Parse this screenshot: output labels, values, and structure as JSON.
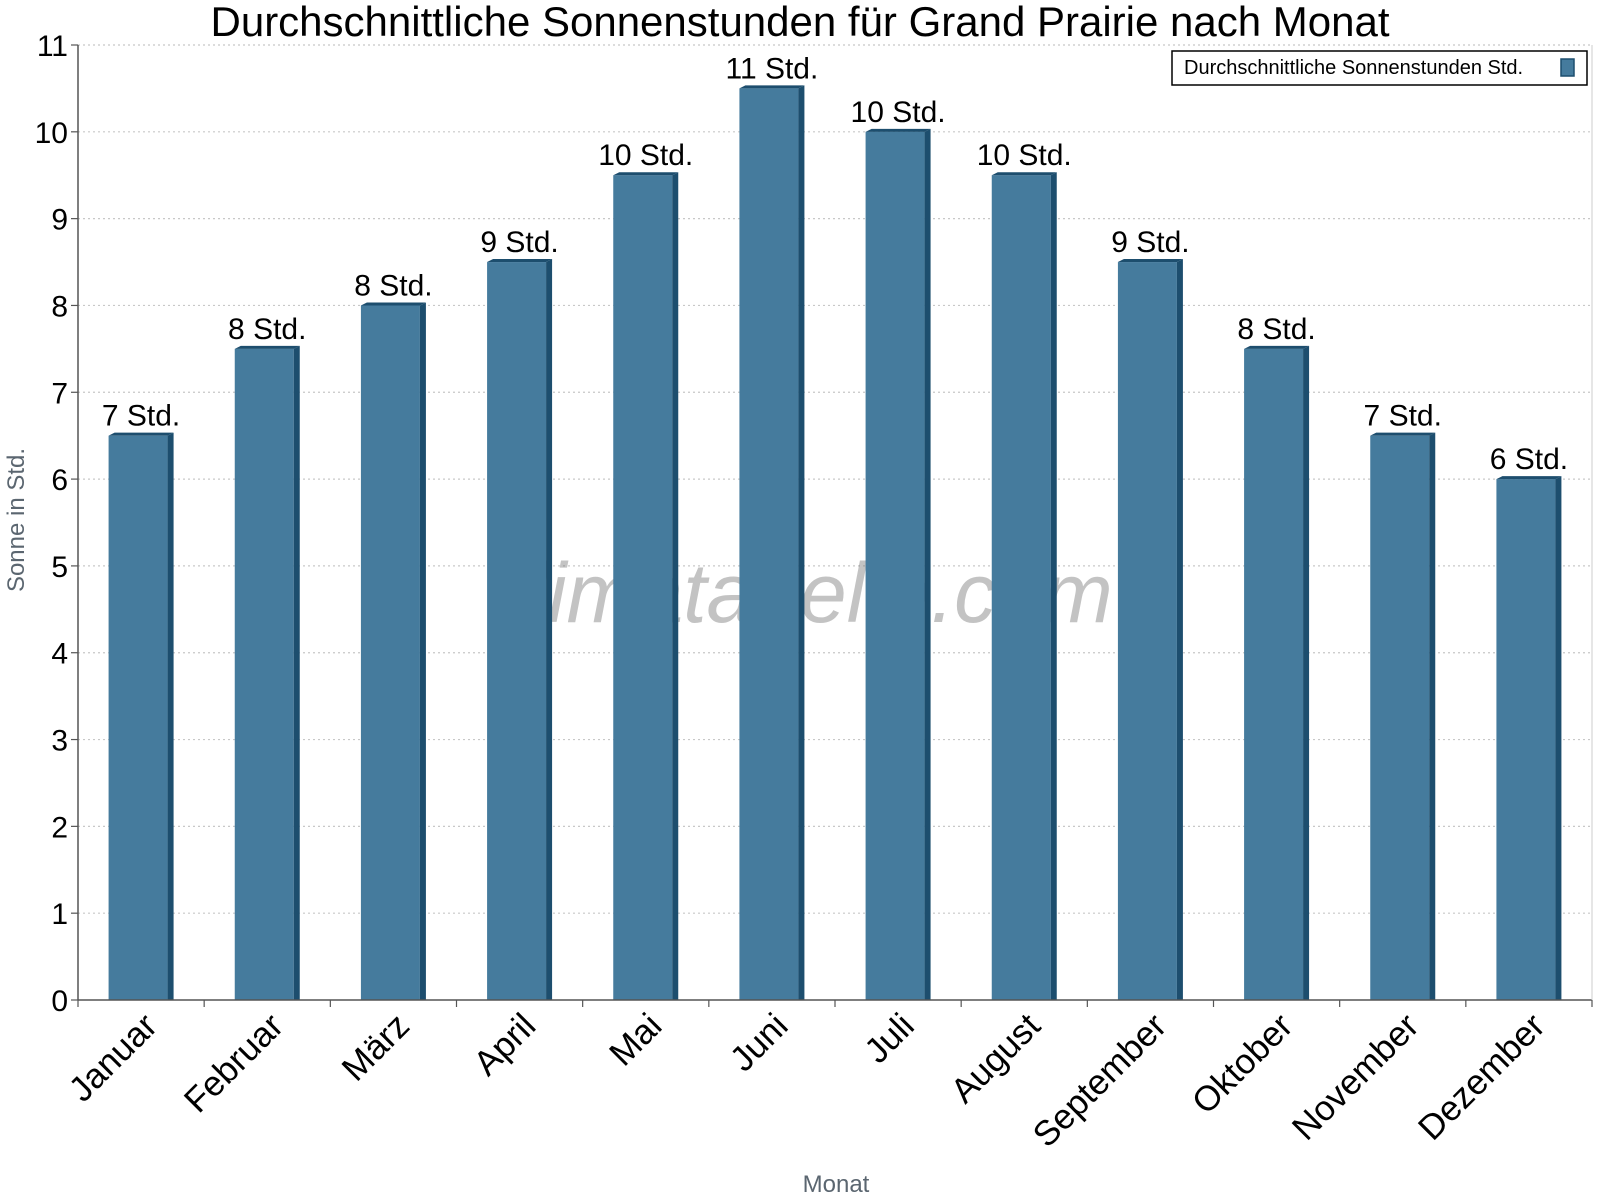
{
  "chart_data": {
    "type": "bar",
    "title": "Durchschnittliche Sonnenstunden für Grand Prairie nach Monat",
    "xlabel": "Monat",
    "ylabel": "Sonne in Std.",
    "ylim": [
      0,
      11
    ],
    "yticks": [
      0,
      1,
      2,
      3,
      4,
      5,
      6,
      7,
      8,
      9,
      10,
      11
    ],
    "grid": true,
    "legend_position": "top-right",
    "categories": [
      "Januar",
      "Februar",
      "März",
      "April",
      "Mai",
      "Juni",
      "Juli",
      "August",
      "September",
      "Oktober",
      "November",
      "Dezember"
    ],
    "series": [
      {
        "name": "Durchschnittliche Sonnenstunden Std.",
        "values": [
          6.5,
          7.5,
          8,
          8.5,
          9.5,
          10.5,
          10,
          9.5,
          8.5,
          7.5,
          6.5,
          6
        ],
        "labels": [
          "7 Std.",
          "8 Std.",
          "8 Std.",
          "9 Std.",
          "10 Std.",
          "11 Std.",
          "10 Std.",
          "10 Std.",
          "9 Std.",
          "8 Std.",
          "7 Std.",
          "6 Std."
        ],
        "color": "#457b9d",
        "shade_color": "#1d4e6e"
      }
    ]
  },
  "watermark": "klimatabelle.com"
}
